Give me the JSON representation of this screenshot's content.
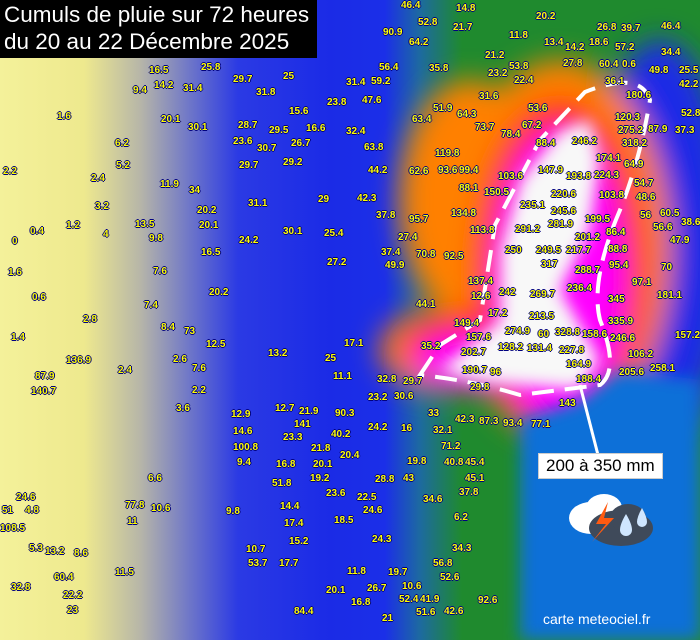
{
  "title": {
    "line1": "Cumuls de pluie sur 72 heures",
    "line2": "du 20 au 22 Décembre 2025"
  },
  "callout": {
    "label": "200 à 350 mm"
  },
  "credit": "carte meteociel.fr",
  "icon": "thunderstorm-rain-icon",
  "colors": {
    "low_rain": "#f4f19a",
    "moderate": "#1b2be6",
    "green": "#1f8a2e",
    "orange": "#ff8000",
    "red": "#ff1010",
    "magenta": "#ff00ff",
    "extreme": "#f8f8f8",
    "sea": "#1070d8",
    "label_text": "#ffff00"
  },
  "station_values": [
    "46.4",
    "52.8",
    "14.8",
    "20.2",
    "26.8",
    "39.7",
    "46.4",
    "90.9",
    "64.2",
    "21.7",
    "11.8",
    "13.4",
    "14.2",
    "18.6",
    "57.2",
    "34.4",
    "60.4",
    "0.6",
    "53.8",
    "16.5",
    "14.2",
    "25.8",
    "29.7",
    "25",
    "31.4",
    "56.4",
    "59.2",
    "35.8",
    "23.2",
    "22.4",
    "27.8",
    "49.8",
    "25.5",
    "9.4",
    "31.4",
    "31.8",
    "23.8",
    "47.6",
    "31.6",
    "21.2",
    "36.1",
    "180.6",
    "42.2",
    "1.6",
    "20.1",
    "30.1",
    "28.7",
    "29.5",
    "16.6",
    "15.6",
    "63.4",
    "51.9",
    "64.3",
    "73.7",
    "53.6",
    "67.2",
    "120.3",
    "37.3",
    "6.2",
    "23.6",
    "30.7",
    "26.7",
    "32.4",
    "63.8",
    "78.4",
    "88.4",
    "246.2",
    "275.2",
    "318.2",
    "87.9",
    "52.8",
    "5.2",
    "2.2",
    "2.4",
    "11.9",
    "29.7",
    "29.2",
    "44.2",
    "62.6",
    "119.8",
    "93.6",
    "99.4",
    "88.1",
    "103.6",
    "174.1",
    "64.9",
    "54.7",
    "34",
    "3.2",
    "31.1",
    "29",
    "42.3",
    "37.8",
    "147.9",
    "193.8",
    "224.3",
    "48.6",
    "0.4",
    "1.2",
    "4",
    "13.5",
    "9.8",
    "20.2",
    "20.1",
    "30.1",
    "25.4",
    "95.7",
    "27.4",
    "134.8",
    "150.5",
    "220.6",
    "245.6",
    "103.8",
    "56",
    "60.5",
    "0",
    "24.2",
    "37.4",
    "49.9",
    "70.8",
    "92.5",
    "113.8",
    "235.1",
    "281.9",
    "199.5",
    "56.6",
    "38.6",
    "1.6",
    "7.6",
    "16.5",
    "27.2",
    "291.2",
    "201.2",
    "86.4",
    "47.9",
    "0.6",
    "20.2",
    "7.4",
    "44.1",
    "137.4",
    "250",
    "249.5",
    "317",
    "217.7",
    "88.8",
    "95.4",
    "70",
    "97.1",
    "1.4",
    "2.8",
    "8.4",
    "12.6",
    "242",
    "269.7",
    "288.7",
    "236.4",
    "181.1",
    "73",
    "12.5",
    "17.1",
    "17.2",
    "213.5",
    "345",
    "136.9",
    "2.6",
    "13.2",
    "25",
    "35.2",
    "60",
    "335.9",
    "149.4",
    "157.6",
    "274.9",
    "328.8",
    "246.6",
    "157.2",
    "87.9",
    "2.4",
    "7.6",
    "11.1",
    "32.8",
    "29.7",
    "106.2",
    "128.2",
    "202.7",
    "158.6",
    "190.7",
    "131.4",
    "227.8",
    "164.9",
    "188.4",
    "205.6",
    "258.1",
    "140.7",
    "108.5",
    "2.2",
    "3.6",
    "12.9",
    "12.7",
    "21.9",
    "23.2",
    "30.6",
    "29.8",
    "96",
    "143",
    "141",
    "90.3",
    "40.2",
    "24.2",
    "16",
    "33",
    "42.3",
    "87.3",
    "93.4",
    "77.1",
    "100.8",
    "14.6",
    "23.3",
    "21.8",
    "32.1",
    "71.2",
    "24.6",
    "4.8",
    "6.6",
    "9.4",
    "16.8",
    "20.1",
    "20.4",
    "19.8",
    "40.8",
    "45.4",
    "45.1",
    "51.8",
    "19.2",
    "23.6",
    "22.5",
    "28.8",
    "43",
    "37.8",
    "77.8",
    "11",
    "10.6",
    "9.8",
    "14.4",
    "17.4",
    "18.5",
    "24.6",
    "34.6",
    "51",
    "5.3",
    "13.2",
    "8.6",
    "10.7",
    "15.2",
    "6.2",
    "53.7",
    "17.7",
    "24.3",
    "34.3",
    "56.8",
    "52.6",
    "60.4",
    "11.5",
    "11.8",
    "19.7",
    "26.7",
    "20.1",
    "16.8",
    "32.8",
    "22.2",
    "23",
    "10.6",
    "52.4",
    "41.9",
    "51.6",
    "42.6",
    "92.6",
    "84.4",
    "21",
    "34.4"
  ]
}
